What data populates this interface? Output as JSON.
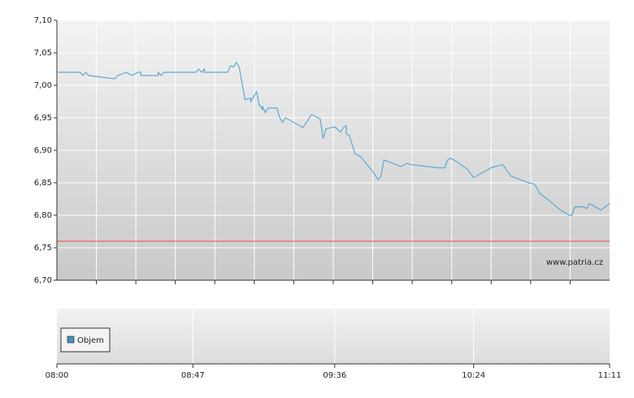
{
  "chart_data": {
    "type": "line",
    "x": [
      "08:00",
      "08:08",
      "08:09",
      "08:10",
      "08:11",
      "08:20",
      "08:21",
      "08:24",
      "08:26",
      "08:28",
      "08:29",
      "08:29",
      "08:35",
      "08:35",
      "08:36",
      "08:37",
      "08:48",
      "08:49",
      "08:50",
      "08:51",
      "08:51",
      "08:52",
      "08:59",
      "09:00",
      "09:01",
      "09:02",
      "09:03",
      "09:05",
      "09:07",
      "09:07",
      "09:09",
      "09:10",
      "09:10",
      "09:11",
      "09:11",
      "09:12",
      "09:13",
      "09:16",
      "09:17",
      "09:18",
      "09:19",
      "09:25",
      "09:27",
      "09:28",
      "09:29",
      "09:31",
      "09:32",
      "09:33",
      "09:36",
      "09:38",
      "09:39",
      "09:40",
      "09:40",
      "09:41",
      "09:43",
      "09:45",
      "09:49",
      "09:51",
      "09:52",
      "09:53",
      "09:59",
      "10:01",
      "10:02",
      "10:12",
      "10:14",
      "10:15",
      "10:16",
      "10:19",
      "10:22",
      "10:24",
      "10:28",
      "10:30",
      "10:34",
      "10:36",
      "10:37",
      "10:43",
      "10:45",
      "10:47",
      "10:50",
      "10:54",
      "10:57",
      "10:58",
      "10:59",
      "11:02",
      "11:03",
      "11:04",
      "11:08",
      "11:11"
    ],
    "series": [
      {
        "color": "#5aaad6",
        "values": [
          7.02,
          7.02,
          7.015,
          7.02,
          7.015,
          7.01,
          7.015,
          7.02,
          7.015,
          7.02,
          7.02,
          7.015,
          7.015,
          7.02,
          7.015,
          7.02,
          7.02,
          7.025,
          7.02,
          7.025,
          7.02,
          7.02,
          7.02,
          7.03,
          7.028,
          7.035,
          7.028,
          6.978,
          6.98,
          6.975,
          6.99,
          6.968,
          6.97,
          6.963,
          6.968,
          6.958,
          6.965,
          6.965,
          6.95,
          6.943,
          6.95,
          6.935,
          6.948,
          6.955,
          6.953,
          6.948,
          6.918,
          6.933,
          6.936,
          6.928,
          6.935,
          6.938,
          6.925,
          6.923,
          6.895,
          6.89,
          6.868,
          6.855,
          6.86,
          6.885,
          6.875,
          6.88,
          6.878,
          6.873,
          6.873,
          6.885,
          6.888,
          6.88,
          6.87,
          6.858,
          6.868,
          6.873,
          6.878,
          6.866,
          6.86,
          6.85,
          6.848,
          6.833,
          6.823,
          6.808,
          6.8,
          6.8,
          6.813,
          6.813,
          6.81,
          6.818,
          6.808,
          6.818
        ]
      }
    ],
    "xlim": [
      "08:00",
      "11:11"
    ],
    "xticks": [
      "08:00",
      "08:47",
      "09:36",
      "10:24",
      "11:11"
    ],
    "ylim": [
      6.7,
      7.1
    ],
    "yticks": [
      {
        "value": 6.7,
        "label": "6,70"
      },
      {
        "value": 6.75,
        "label": "6,75"
      },
      {
        "value": 6.8,
        "label": "6,80"
      },
      {
        "value": 6.85,
        "label": "6,85"
      },
      {
        "value": 6.9,
        "label": "6,90"
      },
      {
        "value": 6.95,
        "label": "6,95"
      },
      {
        "value": 7.0,
        "label": "7,00"
      },
      {
        "value": 7.05,
        "label": "7,05"
      },
      {
        "value": 7.1,
        "label": "7,10"
      }
    ],
    "reference_line": {
      "value": 6.76,
      "color": "#e05050"
    },
    "watermark": "www.patria.cz",
    "volume_legend": {
      "label": "Objem",
      "color": "#4a8fc4"
    },
    "grid": true
  }
}
